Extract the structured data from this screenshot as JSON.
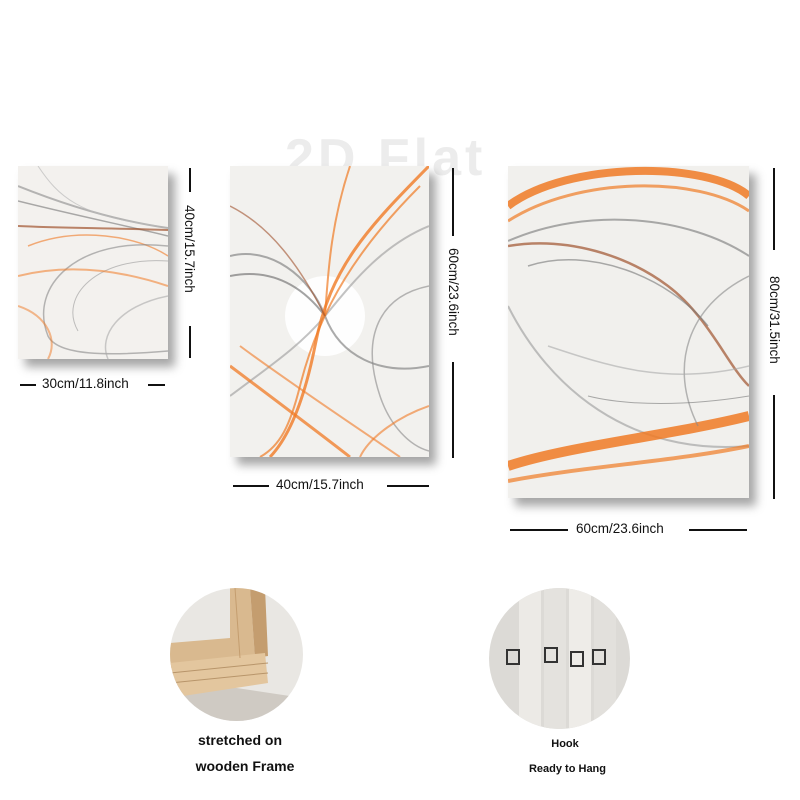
{
  "watermark": "2D Flat",
  "panels": [
    {
      "width_label": "30cm/11.8inch",
      "height_label": "40cm/15.7inch"
    },
    {
      "width_label": "40cm/15.7inch",
      "height_label": "60cm/23.6inch"
    },
    {
      "width_label": "60cm/23.6inch",
      "height_label": "80cm/31.5inch"
    }
  ],
  "features": [
    {
      "caption_line1": "stretched on",
      "caption_line2": "wooden Frame"
    },
    {
      "caption_line1": "Hook",
      "caption_line2": "Ready to Hang"
    }
  ],
  "colors": {
    "accent_orange": "#f07a24",
    "swirl_gray": "#8a8a8a",
    "wood": "#d9b98f"
  }
}
